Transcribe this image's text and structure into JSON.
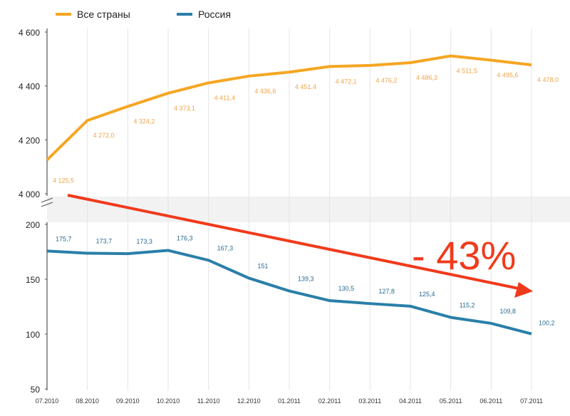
{
  "chart_data": {
    "type": "line",
    "title": "",
    "x": [
      "07.2010",
      "08.2010",
      "09.2010",
      "10.2010",
      "11.2010",
      "12.2010",
      "01.2011",
      "02.2011",
      "03.2011",
      "04.2011",
      "05.2011",
      "06.2011",
      "07.2011"
    ],
    "series": [
      {
        "name": "Все страны",
        "color": "#f5a623",
        "values": [
          4125.5,
          4272.0,
          4324.2,
          4373.1,
          4411.4,
          4436.6,
          4451.4,
          4472.1,
          4476.2,
          4486.3,
          4511.5,
          4495.6,
          4478.0
        ],
        "labels": [
          "4 125,5",
          "4 272,0",
          "4 324,2",
          "4 373,1",
          "4 411,4",
          "4 436,6",
          "4 451,4",
          "4 472,1",
          "4 476,2",
          "4 486,3",
          "4 511,5",
          "4 495,6",
          "4 478,0"
        ]
      },
      {
        "name": "Россия",
        "color": "#2a7fa8",
        "values": [
          175.7,
          173.7,
          173.3,
          176.3,
          167.3,
          151,
          139.3,
          130.5,
          127.8,
          125.4,
          115.2,
          109.8,
          100.2
        ],
        "labels": [
          "175,7",
          "173,7",
          "173,3",
          "176,3",
          "167,3",
          "151",
          "139,3",
          "130,5",
          "127,8",
          "125,4",
          "115,2",
          "109,8",
          "100,2"
        ]
      }
    ],
    "upper_axis": {
      "ylim": [
        4000,
        4600
      ],
      "ticks": [
        "4 000",
        "4 200",
        "4 400",
        "4 600"
      ],
      "tick_values": [
        4000,
        4200,
        4400,
        4600
      ]
    },
    "lower_axis": {
      "ylim": [
        50,
        200
      ],
      "ticks": [
        "50",
        "100",
        "150",
        "200"
      ],
      "tick_values": [
        50,
        100,
        150,
        200
      ]
    },
    "annotation": {
      "text": "- 43%",
      "color": "#f03a1c"
    },
    "legend_placement": "top-left",
    "grid": true
  }
}
